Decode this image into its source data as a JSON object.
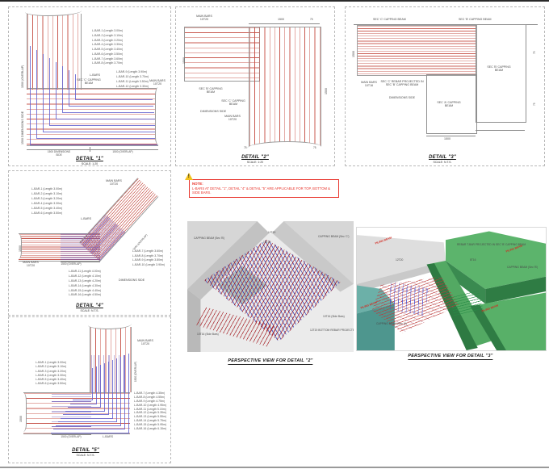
{
  "d1": {
    "title": "DETAIL \"1\"",
    "scale": "SCALE: 1:20",
    "lbars_top": [
      "L-BAR-1 (Length 3.00m)",
      "L-BAR-2 (Length 3.10m)",
      "L-BAR-3 (Length 3.20m)",
      "L-BAR-4 (Length 3.30m)",
      "L-BAR-5 (Length 3.40m)",
      "L-BAR-6 (Length 3.50m)",
      "L-BAR-7 (Length 3.60m)",
      "L-BAR-8 (Length 3.70m)"
    ],
    "lbars_mid": [
      "L-BAR-9 (Length 3.90m)",
      "L-BAR-10 (Length 3.70m)",
      "L-BAR-11 (Length 3.50m)",
      "L-BAR-12 (Length 3.30m)"
    ],
    "lbars_label": "L-BARS",
    "sec_c": "SEC 'C' CAPPING BEAM",
    "main_bars": "MAIN BARS 10T20",
    "dim_left_top": "1500 (OVERLAP)",
    "dim_left_bottom": "1500 DIMENSIONS SIDE",
    "dim_bottom_left": "1500 DIMENSIONS SIDE",
    "dim_bottom_right": "1500 (OVERLAP)"
  },
  "d2": {
    "title": "DETAIL \"2\"",
    "scale": "SCALE: 1:20",
    "main_bars_top": "MAIN BARS 10T20",
    "main_bars_mid": "MAIN BARS 10T20",
    "sec_b": "SEC 'B' CAPPING BEAM",
    "sec_c": "SEC 'C' CAPPING BEAM",
    "dimensions_side": "DIMENSIONS SIDE",
    "dim_top": "1500",
    "dim_left": "1500",
    "dim_right": "1500",
    "dim_75_top": "75",
    "dim_75_bl": "75",
    "dim_75_br": "75"
  },
  "d3": {
    "title": "DETAIL \"3\"",
    "scale": "SCALE: N.T.S.",
    "top_left": "SEC 'C' CAPPING BEAM",
    "top_right": "SEC 'B' CAPPING BEAM",
    "main_bars": "MAIN BARS 10T16",
    "projected": "SEC 'C' REBAR PROJECTED IN SEC 'B' CAPPING BEAM",
    "dimensions_side": "DIMENSIONS SIDE",
    "sec_a": "SEC 'A' CAPPING BEAM",
    "sec_b": "SEC 'B' CAPPING BEAM",
    "dim_bottom": "1500",
    "dim_left": "1500",
    "dim_75_a": "75",
    "dim_75_b": "75"
  },
  "d4": {
    "title": "DETAIL \"4\"",
    "scale": "SCALE: N.T.S.",
    "main_bars_top": "MAIN BARS 10T20",
    "main_bars_bottom": "MAIN BARS 10T20",
    "lbars_label": "L-BARS",
    "overlap": "1500 (OVERLAP)",
    "overlap_diag": "1500 (OVERLAP)",
    "dimensions_side": "DIMENSIONS SIDE",
    "dim_left": "1500",
    "lbars_left": [
      "L-BAR-1 (Length 3.00m)",
      "L-BAR-2 (Length 3.10m)",
      "L-BAR-3 (Length 3.20m)",
      "L-BAR-4 (Length 3.30m)",
      "L-BAR-5 (Length 3.40m)",
      "L-BAR-6 (Length 3.50m)"
    ],
    "lbars_right": [
      "L-BAR-7 (Length 3.60m)",
      "L-BAR-8 (Length 3.70m)",
      "L-BAR-9 (Length 3.80m)",
      "L-BAR-10 (Length 3.90m)"
    ],
    "lbars_bottom": [
      "L-BAR-11 (Length 4.00m)",
      "L-BAR-12 (Length 4.10m)",
      "L-BAR-13 (Length 4.20m)",
      "L-BAR-14 (Length 4.30m)",
      "L-BAR-15 (Length 4.40m)",
      "L-BAR-16 (Length 4.50m)"
    ]
  },
  "d5": {
    "title": "DETAIL \"5\"",
    "scale": "SCALE: N.T.S.",
    "main_bars": "MAIN BARS 10T20",
    "overlap_right": "1500 (OVERLAP)",
    "overlap_bottom": "1500 (OVERLAP)",
    "lbars_label": "L-BARS",
    "dim_left": "1500",
    "lbars_left": [
      "L-BAR-1 (Length 3.00m)",
      "L-BAR-2 (Length 3.10m)",
      "L-BAR-3 (Length 3.20m)",
      "L-BAR-4 (Length 3.30m)",
      "L-BAR-5 (Length 3.40m)",
      "L-BAR-6 (Length 3.50m)"
    ],
    "lbars_right": [
      "L-BAR-7 (Length 4.35m)",
      "L-BAR-8 (Length 4.55m)",
      "L-BAR-9 (Length 4.75m)",
      "L-BAR-10 (Length 4.95m)",
      "L-BAR-11 (Length 5.15m)",
      "L-BAR-12 (Length 5.35m)",
      "L-BAR-13 (Length 5.55m)",
      "L-BAR-14 (Length 5.75m)",
      "L-BAR-15 (Length 5.95m)",
      "L-BAR-16 (Length 6.15m)"
    ]
  },
  "note": {
    "heading": "NOTE:",
    "body": "L-BARS AT DETAIL \"1\", DETAIL \"4\" & DETAIL \"5\" ARE APPLICABLE FOR TOP, BOTTOM & SIDE BARS."
  },
  "p2": {
    "title": "PERSPECTIVE VIEW FOR DETAIL \"2\"",
    "capping_left": "CAPPING BEAM (Sec 'B')",
    "capping_right": "CAPPING BEAM (Sec 'C')",
    "bars_a": "12T20",
    "bars_b": "10T20",
    "side_bars_right": "10T16 (Side Bars)",
    "side_bars_left": "10T16 (Side Bars)",
    "bottom_note": "12T20 BOTTOM REBAR PROJECTED IN SEC 'C' CAPPING BEAM"
  },
  "p3": {
    "title": "PERSPECTIVE VIEW FOR DETAIL \"3\"",
    "piling_1": "PILING BEAM",
    "piling_2": "PILING BEAM",
    "piling_3": "PILING BEAM",
    "piling_4": "PILING BEAM",
    "rebar_note": "REBAR T-BAR PROJECTED IN SEC 'B' CAPPING BEAM",
    "bars_a": "12T20",
    "bars_b": "8T16",
    "capping_b": "CAPPING BEAM (Sec 'B')",
    "capping_a": "CAPPING BEAM (Sec 'A')"
  },
  "colors": {
    "rebar_red": "#c65046",
    "lbar_blue": "#6262d0",
    "note_red": "#e8332a",
    "green": "#57b06a",
    "teal": "#5fa79f"
  }
}
